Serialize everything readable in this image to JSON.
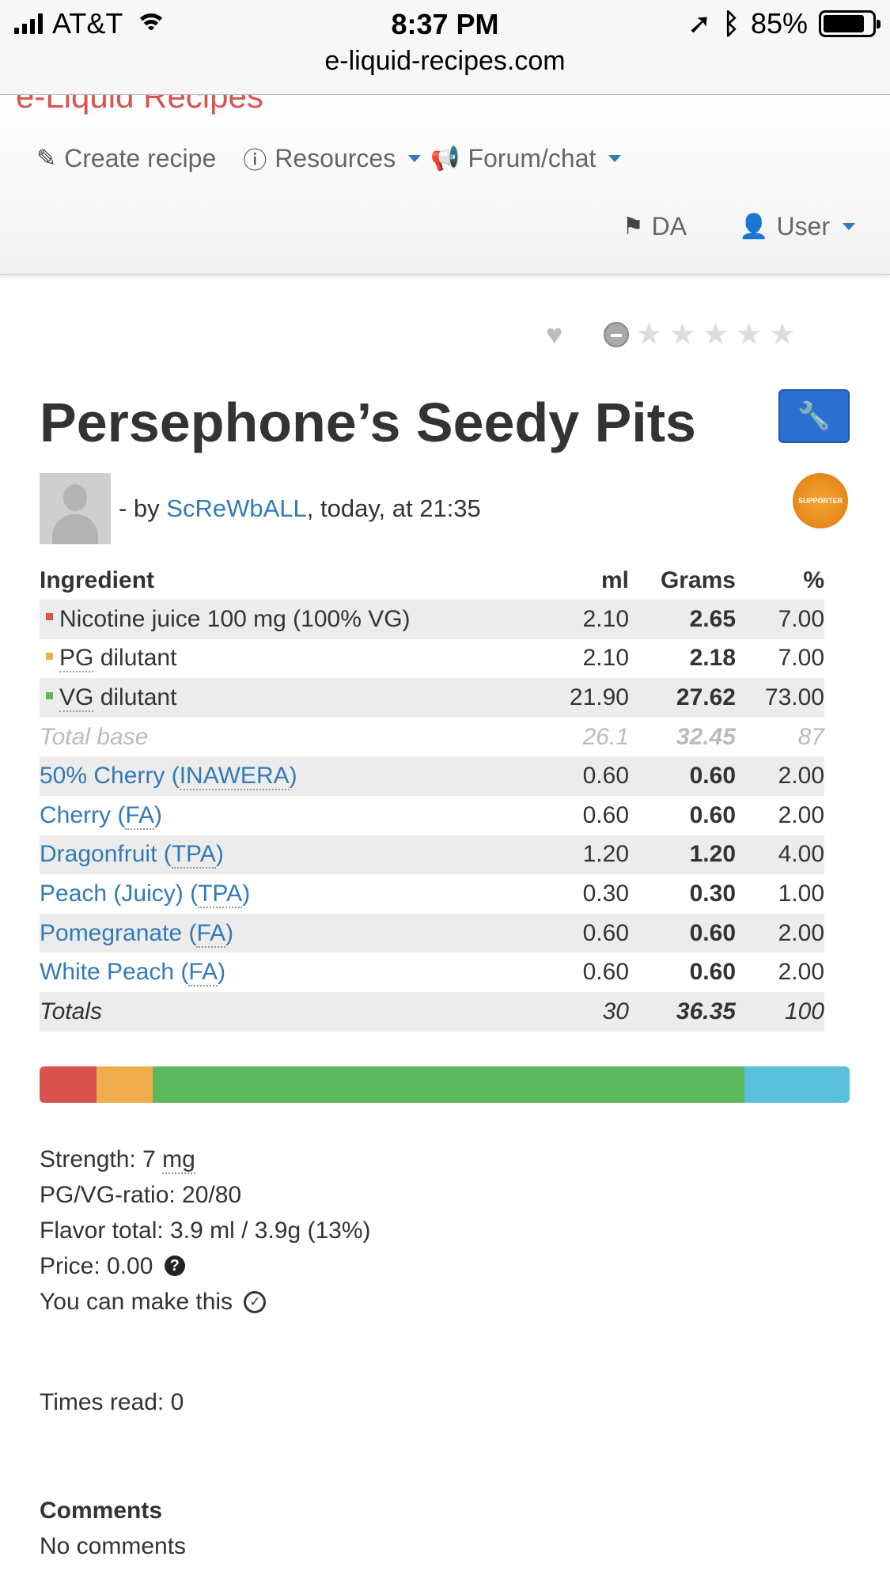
{
  "status_bar": {
    "carrier": "AT&T",
    "time": "8:37 PM",
    "battery": "85%",
    "battery_level": 0.85,
    "url": "e-liquid-recipes.com"
  },
  "nav": {
    "brand": "e-Liquid Recipes",
    "create_recipe": "Create recipe",
    "resources": "Resources",
    "forum": "Forum/chat",
    "language": "DA",
    "user": "User",
    "link_color": "#337ab7"
  },
  "rating": {
    "stars_filled": 0,
    "stars_total": 5
  },
  "recipe": {
    "title": "Persephone’s Seedy Pits",
    "by_prefix": "- by ",
    "author": "ScReWbALL",
    "date_suffix": ", today, at 21:35",
    "badge": "SUPPORTER"
  },
  "table": {
    "headers": {
      "ingredient": "Ingredient",
      "ml": "ml",
      "grams": "Grams",
      "pct": "%"
    },
    "base_rows": [
      {
        "name": "Nicotine juice 100 mg (100% VG)",
        "abbr": "",
        "rest": "",
        "ml": "2.10",
        "grams": "2.65",
        "pct": "7.00",
        "color": "#d9534f"
      },
      {
        "name": "",
        "abbr": "PG",
        "rest": " dilutant",
        "ml": "2.10",
        "grams": "2.18",
        "pct": "7.00",
        "color": "#f0ad4e"
      },
      {
        "name": "",
        "abbr": "VG",
        "rest": " dilutant",
        "ml": "21.90",
        "grams": "27.62",
        "pct": "73.00",
        "color": "#5cb85c"
      }
    ],
    "total_base": {
      "label": "Total base",
      "ml": "26.1",
      "grams": "32.45",
      "pct": "87"
    },
    "flavors": [
      {
        "name": "50% Cherry (",
        "vendor": "INAWERA",
        "close": ")",
        "ml": "0.60",
        "grams": "0.60",
        "pct": "2.00"
      },
      {
        "name": "Cherry (",
        "vendor": "FA",
        "close": ")",
        "ml": "0.60",
        "grams": "0.60",
        "pct": "2.00"
      },
      {
        "name": "Dragonfruit (",
        "vendor": "TPA",
        "close": ")",
        "ml": "1.20",
        "grams": "1.20",
        "pct": "4.00"
      },
      {
        "name": "Peach (Juicy) (",
        "vendor": "TPA",
        "close": ")",
        "ml": "0.30",
        "grams": "0.30",
        "pct": "1.00"
      },
      {
        "name": "Pomegranate (",
        "vendor": "FA",
        "close": ")",
        "ml": "0.60",
        "grams": "0.60",
        "pct": "2.00"
      },
      {
        "name": "White Peach (",
        "vendor": "FA",
        "close": ")",
        "ml": "0.60",
        "grams": "0.60",
        "pct": "2.00"
      }
    ],
    "totals": {
      "label": "Totals",
      "ml": "30",
      "grams": "36.35",
      "pct": "100"
    }
  },
  "ratio_bar": [
    {
      "name": "nicotine",
      "pct": 7,
      "color": "#d9534f"
    },
    {
      "name": "pg",
      "pct": 7,
      "color": "#f0ad4e"
    },
    {
      "name": "vg",
      "pct": 73,
      "color": "#5cb85c"
    },
    {
      "name": "flavor",
      "pct": 13,
      "color": "#5bc0de"
    }
  ],
  "info": {
    "strength_label": "Strength: 7 ",
    "strength_unit": "mg",
    "ratio": "PG/VG-ratio: 20/80",
    "flavor_total": "Flavor total: 3.9 ml / 3.9g (13%)",
    "price": "Price: 0.00",
    "can_make": "You can make this",
    "times_read": "Times read: 0"
  },
  "comments": {
    "heading": "Comments",
    "text": "No comments"
  }
}
